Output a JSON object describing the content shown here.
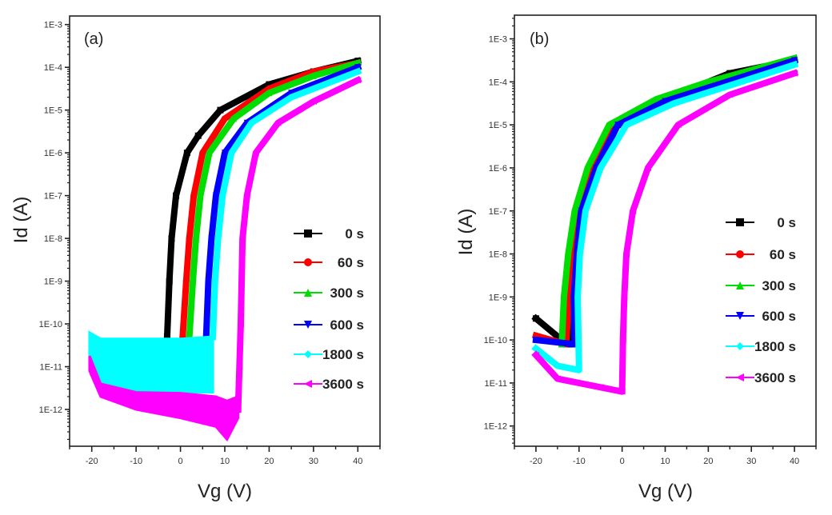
{
  "chart_data": [
    {
      "type": "scatter",
      "panel_label": "(a)",
      "xlabel": "Vg (V)",
      "ylabel": "Id (A)",
      "yscale": "log",
      "xlim": [
        -25,
        45
      ],
      "ylim_log10": [
        -12.86,
        -2.8
      ],
      "x_ticks": [
        -20,
        -10,
        0,
        10,
        20,
        30,
        40
      ],
      "x_tick_labels": [
        "-20",
        "-10",
        "0",
        "10",
        "20",
        "30",
        "40"
      ],
      "y_ticks_log10": [
        -3,
        -4,
        -5,
        -6,
        -7,
        -8,
        -9,
        -10,
        -11,
        -12
      ],
      "y_tick_labels": [
        "1E-3",
        "1E-4",
        "1E-5",
        "1E-6",
        "1E-7",
        "1E-8",
        "1E-9",
        "1E-10",
        "1E-11",
        "1E-12"
      ],
      "legend_position": "right",
      "series": [
        {
          "name": "0 s",
          "color": "#000000",
          "marker": "square",
          "points": [
            [
              -3,
              -10.3
            ],
            [
              -2.5,
              -9
            ],
            [
              -2,
              -8
            ],
            [
              -1,
              -7
            ],
            [
              1.5,
              -6
            ],
            [
              4,
              -5.6
            ],
            [
              9,
              -5
            ],
            [
              20,
              -4.4
            ],
            [
              30,
              -4.1
            ],
            [
              40,
              -3.85
            ]
          ]
        },
        {
          "name": "60 s",
          "color": "#ff0000",
          "marker": "circle",
          "points": [
            [
              0.5,
              -10.3
            ],
            [
              1.3,
              -9
            ],
            [
              2,
              -8
            ],
            [
              3,
              -7
            ],
            [
              5,
              -6
            ],
            [
              10,
              -5.2
            ],
            [
              20,
              -4.5
            ],
            [
              30,
              -4.1
            ],
            [
              40,
              -3.9
            ]
          ]
        },
        {
          "name": "300 s",
          "color": "#00dd00",
          "marker": "triangle-up",
          "points": [
            [
              2,
              -10.3
            ],
            [
              2.8,
              -9
            ],
            [
              3.5,
              -8
            ],
            [
              4.5,
              -7
            ],
            [
              6.5,
              -6
            ],
            [
              12,
              -5.2
            ],
            [
              20,
              -4.6
            ],
            [
              30,
              -4.2
            ],
            [
              40,
              -3.9
            ]
          ]
        },
        {
          "name": "600 s",
          "color": "#0000ff",
          "marker": "triangle-down",
          "points": [
            [
              5.8,
              -10.3
            ],
            [
              6.3,
              -9
            ],
            [
              7,
              -8
            ],
            [
              8,
              -7
            ],
            [
              10,
              -6
            ],
            [
              15,
              -5.3
            ],
            [
              25,
              -4.6
            ],
            [
              40,
              -4.0
            ]
          ]
        },
        {
          "name": "1800 s",
          "color": "#00ffff",
          "marker": "diamond",
          "band": [
            [
              -20.5,
              -10.2,
              -10.9
            ],
            [
              -18,
              -10.35,
              -11.4
            ],
            [
              -10,
              -10.35,
              -11.6
            ],
            [
              0,
              -10.35,
              -11.6
            ],
            [
              7.3,
              -10.3,
              -11.6
            ]
          ],
          "points": [
            [
              7.3,
              -10.3
            ],
            [
              7.8,
              -9
            ],
            [
              8.5,
              -8
            ],
            [
              9.5,
              -7
            ],
            [
              11.5,
              -6
            ],
            [
              16,
              -5.3
            ],
            [
              25,
              -4.7
            ],
            [
              40,
              -4.1
            ]
          ]
        },
        {
          "name": "3600 s",
          "color": "#ff00ff",
          "marker": "triangle-left",
          "band": [
            [
              -20.5,
              -10.75,
              -11.1
            ],
            [
              -18,
              -11.4,
              -11.7
            ],
            [
              -10,
              -11.6,
              -12.0
            ],
            [
              0,
              -11.62,
              -12.2
            ],
            [
              8,
              -11.7,
              -12.4
            ],
            [
              10.5,
              -11.8,
              -12.7
            ],
            [
              13,
              -11.7,
              -12.2
            ]
          ],
          "points": [
            [
              13,
              -12
            ],
            [
              13.3,
              -11
            ],
            [
              13.6,
              -10
            ],
            [
              14,
              -8
            ],
            [
              15,
              -7
            ],
            [
              17,
              -6
            ],
            [
              22,
              -5.3
            ],
            [
              30,
              -4.8
            ],
            [
              40,
              -4.3
            ]
          ]
        }
      ]
    },
    {
      "type": "scatter",
      "panel_label": "(b)",
      "xlabel": "Vg (V)",
      "ylabel": "Id (A)",
      "yscale": "log",
      "xlim": [
        -25,
        45
      ],
      "ylim_log10": [
        -12.47,
        -2.45
      ],
      "x_ticks": [
        -20,
        -10,
        0,
        10,
        20,
        30,
        40
      ],
      "x_tick_labels": [
        "-20",
        "-10",
        "0",
        "10",
        "20",
        "30",
        "40"
      ],
      "y_ticks_log10": [
        -3,
        -4,
        -5,
        -6,
        -7,
        -8,
        -9,
        -10,
        -11,
        -12
      ],
      "y_tick_labels": [
        "1E-3",
        "1E-4",
        "1E-5",
        "1E-6",
        "1E-7",
        "1E-8",
        "1E-9",
        "1E-10",
        "1E-11",
        "1E-12"
      ],
      "legend_position": "right",
      "series": [
        {
          "name": "0 s",
          "color": "#000000",
          "marker": "square",
          "points": [
            [
              -20,
              -9.5
            ],
            [
              -14,
              -10
            ],
            [
              -12,
              -10.1
            ],
            [
              -11.5,
              -9
            ],
            [
              -10.5,
              -8
            ],
            [
              -9,
              -7
            ],
            [
              -6,
              -6
            ],
            [
              -1,
              -5
            ],
            [
              10,
              -4.4
            ],
            [
              25,
              -3.8
            ],
            [
              40,
              -3.5
            ]
          ]
        },
        {
          "name": "60 s",
          "color": "#ff0000",
          "marker": "circle",
          "points": [
            [
              -20,
              -9.9
            ],
            [
              -13,
              -10.1
            ],
            [
              -12.3,
              -9
            ],
            [
              -11.5,
              -8
            ],
            [
              -10,
              -7
            ],
            [
              -7,
              -6
            ],
            [
              -2,
              -5
            ],
            [
              10,
              -4.4
            ],
            [
              40,
              -3.5
            ]
          ]
        },
        {
          "name": "300 s",
          "color": "#00dd00",
          "marker": "triangle-up",
          "points": [
            [
              -14,
              -10.1
            ],
            [
              -13.5,
              -9
            ],
            [
              -12.5,
              -8
            ],
            [
              -11,
              -7
            ],
            [
              -8,
              -6
            ],
            [
              -3,
              -5
            ],
            [
              8,
              -4.4
            ],
            [
              20,
              -4
            ],
            [
              40,
              -3.45
            ]
          ]
        },
        {
          "name": "600 s",
          "color": "#0000ff",
          "marker": "triangle-down",
          "points": [
            [
              -20,
              -10
            ],
            [
              -11,
              -10.1
            ],
            [
              -11.2,
              -9
            ],
            [
              -10.5,
              -8
            ],
            [
              -9.5,
              -7
            ],
            [
              -6,
              -6
            ],
            [
              -1,
              -5
            ],
            [
              10,
              -4.45
            ],
            [
              40,
              -3.5
            ]
          ]
        },
        {
          "name": "1800 s",
          "color": "#00ffff",
          "marker": "diamond",
          "points": [
            [
              -20,
              -10.2
            ],
            [
              -15,
              -10.6
            ],
            [
              -10,
              -10.7
            ],
            [
              -10.3,
              -9
            ],
            [
              -9.8,
              -8
            ],
            [
              -8.5,
              -7
            ],
            [
              -5,
              -6
            ],
            [
              1,
              -5
            ],
            [
              12,
              -4.5
            ],
            [
              40,
              -3.6
            ]
          ]
        },
        {
          "name": "3600 s",
          "color": "#ff00ff",
          "marker": "triangle-left",
          "points": [
            [
              -20,
              -10.35
            ],
            [
              -15,
              -10.9
            ],
            [
              -5,
              -11.1
            ],
            [
              0,
              -11.2
            ],
            [
              0.2,
              -10
            ],
            [
              0.5,
              -9
            ],
            [
              1,
              -8
            ],
            [
              2.5,
              -7
            ],
            [
              6,
              -6
            ],
            [
              13,
              -5
            ],
            [
              25,
              -4.3
            ],
            [
              40,
              -3.8
            ]
          ]
        }
      ]
    }
  ]
}
